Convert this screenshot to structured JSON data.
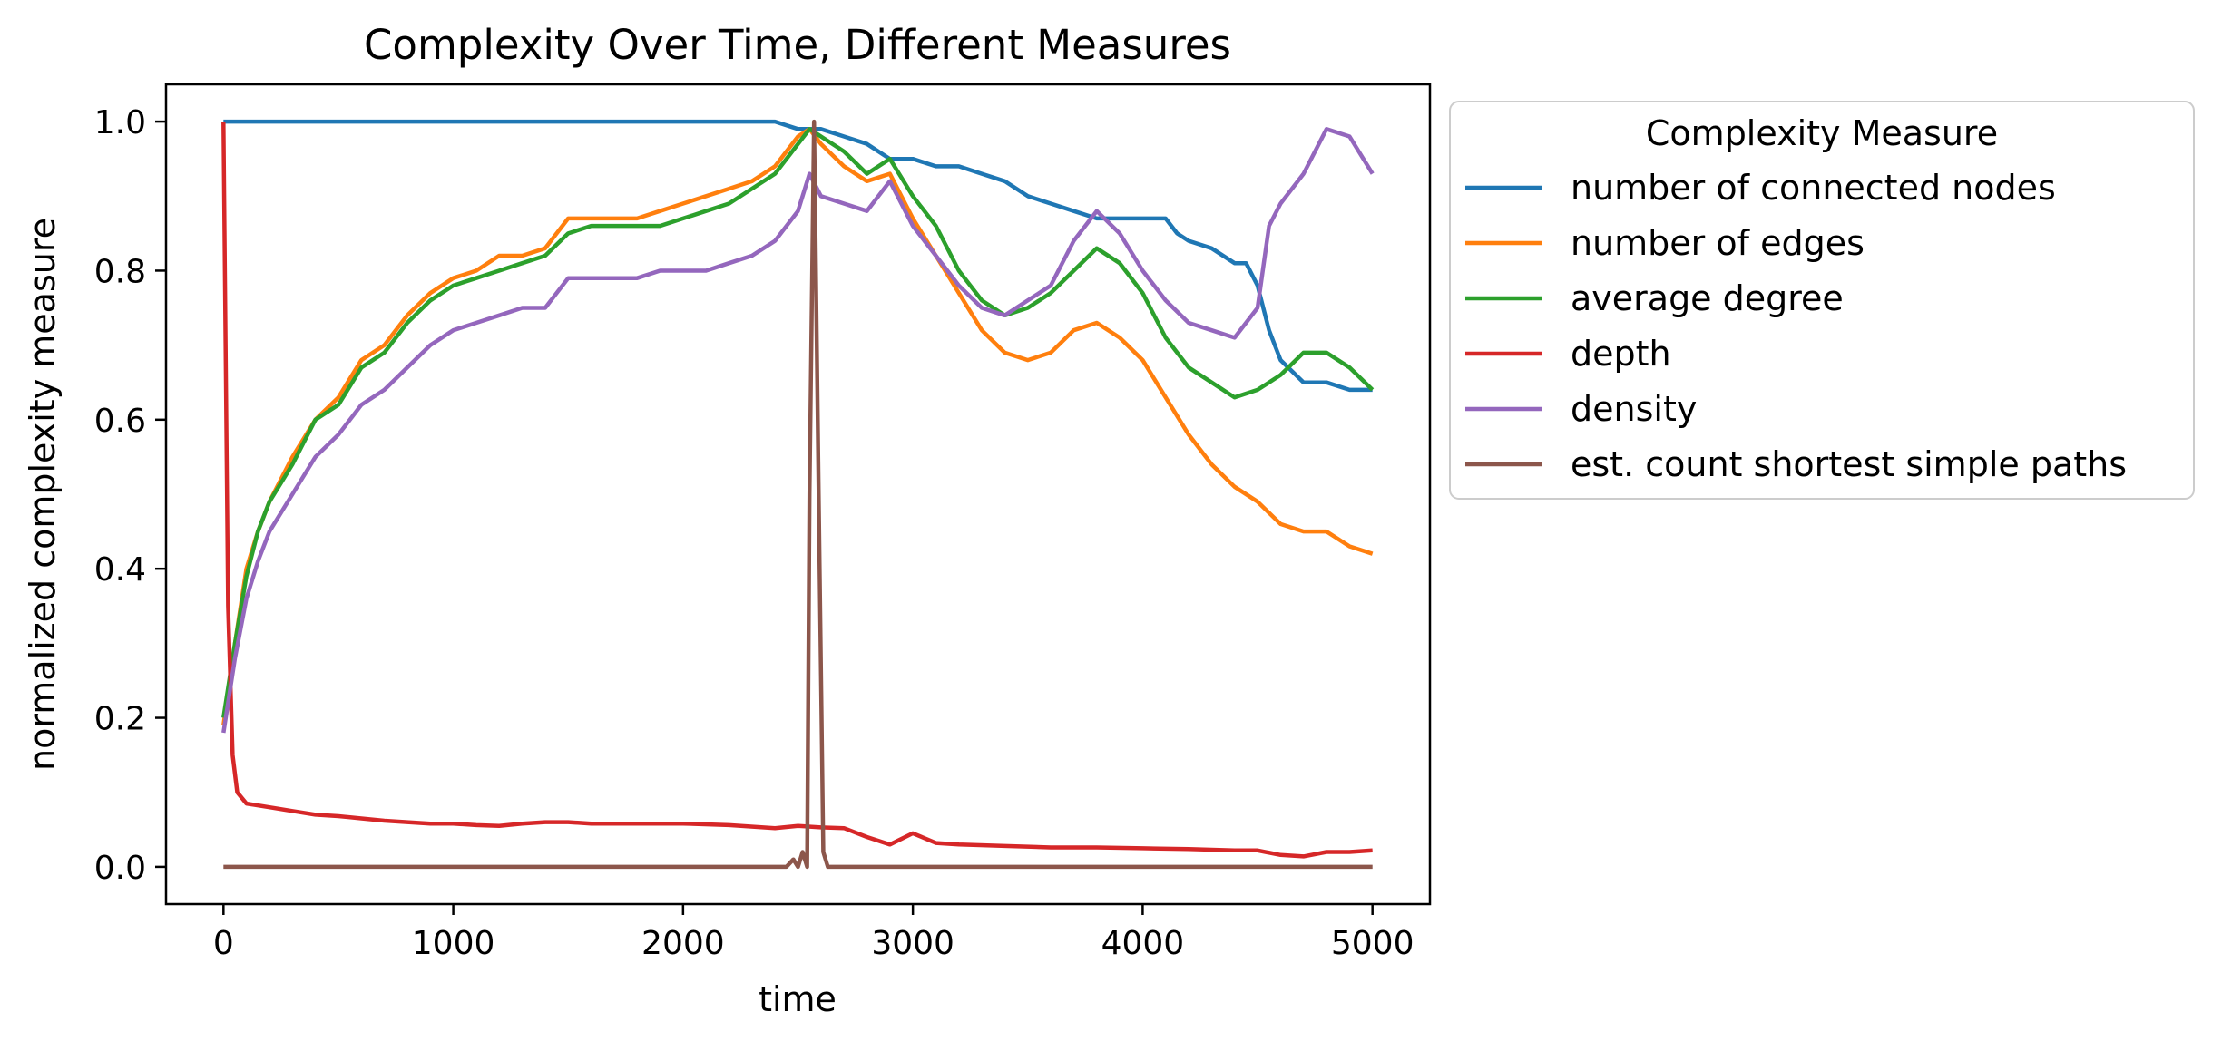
{
  "chart_data": {
    "type": "line",
    "title": "Complexity Over Time, Different Measures",
    "xlabel": "time",
    "ylabel": "normalized complexity measure",
    "xlim": [
      -250,
      5250
    ],
    "ylim": [
      -0.05,
      1.05
    ],
    "x_ticks": [
      0,
      1000,
      2000,
      3000,
      4000,
      5000
    ],
    "x_tick_labels": [
      "0",
      "1000",
      "2000",
      "3000",
      "4000",
      "5000"
    ],
    "y_ticks": [
      0.0,
      0.2,
      0.4,
      0.6,
      0.8,
      1.0
    ],
    "y_tick_labels": [
      "0.0",
      "0.2",
      "0.4",
      "0.6",
      "0.8",
      "1.0"
    ],
    "grid": false,
    "legend": {
      "title": "Complexity Measure",
      "placement": "outside-right-top"
    },
    "series": [
      {
        "name": "number of connected nodes",
        "color": "#1f77b4",
        "points": [
          [
            0,
            1.0
          ],
          [
            2200,
            1.0
          ],
          [
            2400,
            1.0
          ],
          [
            2500,
            0.99
          ],
          [
            2600,
            0.99
          ],
          [
            2700,
            0.98
          ],
          [
            2800,
            0.97
          ],
          [
            2900,
            0.95
          ],
          [
            3000,
            0.95
          ],
          [
            3100,
            0.94
          ],
          [
            3200,
            0.94
          ],
          [
            3300,
            0.93
          ],
          [
            3400,
            0.92
          ],
          [
            3500,
            0.9
          ],
          [
            3600,
            0.89
          ],
          [
            3700,
            0.88
          ],
          [
            3800,
            0.87
          ],
          [
            3900,
            0.87
          ],
          [
            4000,
            0.87
          ],
          [
            4100,
            0.87
          ],
          [
            4150,
            0.85
          ],
          [
            4200,
            0.84
          ],
          [
            4300,
            0.83
          ],
          [
            4400,
            0.81
          ],
          [
            4450,
            0.81
          ],
          [
            4500,
            0.78
          ],
          [
            4550,
            0.72
          ],
          [
            4600,
            0.68
          ],
          [
            4700,
            0.65
          ],
          [
            4800,
            0.65
          ],
          [
            4900,
            0.64
          ],
          [
            5000,
            0.64
          ]
        ]
      },
      {
        "name": "number of edges",
        "color": "#ff7f0e",
        "points": [
          [
            0,
            0.19
          ],
          [
            50,
            0.3
          ],
          [
            100,
            0.4
          ],
          [
            150,
            0.45
          ],
          [
            200,
            0.49
          ],
          [
            300,
            0.55
          ],
          [
            400,
            0.6
          ],
          [
            500,
            0.63
          ],
          [
            600,
            0.68
          ],
          [
            700,
            0.7
          ],
          [
            800,
            0.74
          ],
          [
            900,
            0.77
          ],
          [
            1000,
            0.79
          ],
          [
            1100,
            0.8
          ],
          [
            1200,
            0.82
          ],
          [
            1300,
            0.82
          ],
          [
            1400,
            0.83
          ],
          [
            1500,
            0.87
          ],
          [
            1600,
            0.87
          ],
          [
            1700,
            0.87
          ],
          [
            1800,
            0.87
          ],
          [
            1900,
            0.88
          ],
          [
            2000,
            0.89
          ],
          [
            2100,
            0.9
          ],
          [
            2200,
            0.91
          ],
          [
            2300,
            0.92
          ],
          [
            2400,
            0.94
          ],
          [
            2500,
            0.98
          ],
          [
            2550,
            0.99
          ],
          [
            2600,
            0.97
          ],
          [
            2700,
            0.94
          ],
          [
            2800,
            0.92
          ],
          [
            2900,
            0.93
          ],
          [
            3000,
            0.87
          ],
          [
            3100,
            0.82
          ],
          [
            3200,
            0.77
          ],
          [
            3300,
            0.72
          ],
          [
            3400,
            0.69
          ],
          [
            3500,
            0.68
          ],
          [
            3600,
            0.69
          ],
          [
            3700,
            0.72
          ],
          [
            3800,
            0.73
          ],
          [
            3900,
            0.71
          ],
          [
            4000,
            0.68
          ],
          [
            4100,
            0.63
          ],
          [
            4200,
            0.58
          ],
          [
            4300,
            0.54
          ],
          [
            4400,
            0.51
          ],
          [
            4500,
            0.49
          ],
          [
            4600,
            0.46
          ],
          [
            4700,
            0.45
          ],
          [
            4800,
            0.45
          ],
          [
            4900,
            0.43
          ],
          [
            5000,
            0.42
          ]
        ]
      },
      {
        "name": "average degree",
        "color": "#2ca02c",
        "points": [
          [
            0,
            0.2
          ],
          [
            50,
            0.3
          ],
          [
            100,
            0.39
          ],
          [
            150,
            0.45
          ],
          [
            200,
            0.49
          ],
          [
            300,
            0.54
          ],
          [
            400,
            0.6
          ],
          [
            500,
            0.62
          ],
          [
            600,
            0.67
          ],
          [
            700,
            0.69
          ],
          [
            800,
            0.73
          ],
          [
            900,
            0.76
          ],
          [
            1000,
            0.78
          ],
          [
            1100,
            0.79
          ],
          [
            1200,
            0.8
          ],
          [
            1300,
            0.81
          ],
          [
            1400,
            0.82
          ],
          [
            1500,
            0.85
          ],
          [
            1600,
            0.86
          ],
          [
            1700,
            0.86
          ],
          [
            1800,
            0.86
          ],
          [
            1900,
            0.86
          ],
          [
            2000,
            0.87
          ],
          [
            2100,
            0.88
          ],
          [
            2200,
            0.89
          ],
          [
            2300,
            0.91
          ],
          [
            2400,
            0.93
          ],
          [
            2500,
            0.97
          ],
          [
            2550,
            0.99
          ],
          [
            2600,
            0.98
          ],
          [
            2700,
            0.96
          ],
          [
            2800,
            0.93
          ],
          [
            2900,
            0.95
          ],
          [
            3000,
            0.9
          ],
          [
            3100,
            0.86
          ],
          [
            3200,
            0.8
          ],
          [
            3300,
            0.76
          ],
          [
            3400,
            0.74
          ],
          [
            3500,
            0.75
          ],
          [
            3600,
            0.77
          ],
          [
            3700,
            0.8
          ],
          [
            3800,
            0.83
          ],
          [
            3900,
            0.81
          ],
          [
            4000,
            0.77
          ],
          [
            4100,
            0.71
          ],
          [
            4200,
            0.67
          ],
          [
            4300,
            0.65
          ],
          [
            4400,
            0.63
          ],
          [
            4500,
            0.64
          ],
          [
            4600,
            0.66
          ],
          [
            4700,
            0.69
          ],
          [
            4800,
            0.69
          ],
          [
            4900,
            0.67
          ],
          [
            5000,
            0.64
          ]
        ]
      },
      {
        "name": "depth",
        "color": "#d62728",
        "points": [
          [
            0,
            1.0
          ],
          [
            20,
            0.35
          ],
          [
            40,
            0.15
          ],
          [
            60,
            0.1
          ],
          [
            100,
            0.085
          ],
          [
            200,
            0.08
          ],
          [
            300,
            0.075
          ],
          [
            400,
            0.07
          ],
          [
            500,
            0.068
          ],
          [
            600,
            0.065
          ],
          [
            700,
            0.062
          ],
          [
            800,
            0.06
          ],
          [
            900,
            0.058
          ],
          [
            1000,
            0.058
          ],
          [
            1100,
            0.056
          ],
          [
            1200,
            0.055
          ],
          [
            1300,
            0.058
          ],
          [
            1400,
            0.06
          ],
          [
            1500,
            0.06
          ],
          [
            1600,
            0.058
          ],
          [
            1700,
            0.058
          ],
          [
            1800,
            0.058
          ],
          [
            1900,
            0.058
          ],
          [
            2000,
            0.058
          ],
          [
            2200,
            0.056
          ],
          [
            2400,
            0.052
          ],
          [
            2500,
            0.055
          ],
          [
            2600,
            0.053
          ],
          [
            2700,
            0.052
          ],
          [
            2800,
            0.04
          ],
          [
            2900,
            0.03
          ],
          [
            3000,
            0.045
          ],
          [
            3100,
            0.032
          ],
          [
            3200,
            0.03
          ],
          [
            3400,
            0.028
          ],
          [
            3600,
            0.026
          ],
          [
            3800,
            0.026
          ],
          [
            4000,
            0.025
          ],
          [
            4200,
            0.024
          ],
          [
            4400,
            0.022
          ],
          [
            4500,
            0.022
          ],
          [
            4600,
            0.016
          ],
          [
            4700,
            0.014
          ],
          [
            4800,
            0.02
          ],
          [
            4900,
            0.02
          ],
          [
            5000,
            0.022
          ]
        ]
      },
      {
        "name": "density",
        "color": "#9467bd",
        "points": [
          [
            0,
            0.18
          ],
          [
            50,
            0.28
          ],
          [
            100,
            0.36
          ],
          [
            150,
            0.41
          ],
          [
            200,
            0.45
          ],
          [
            300,
            0.5
          ],
          [
            400,
            0.55
          ],
          [
            500,
            0.58
          ],
          [
            600,
            0.62
          ],
          [
            700,
            0.64
          ],
          [
            800,
            0.67
          ],
          [
            900,
            0.7
          ],
          [
            1000,
            0.72
          ],
          [
            1100,
            0.73
          ],
          [
            1200,
            0.74
          ],
          [
            1300,
            0.75
          ],
          [
            1400,
            0.75
          ],
          [
            1500,
            0.79
          ],
          [
            1600,
            0.79
          ],
          [
            1700,
            0.79
          ],
          [
            1800,
            0.79
          ],
          [
            1900,
            0.8
          ],
          [
            2000,
            0.8
          ],
          [
            2100,
            0.8
          ],
          [
            2200,
            0.81
          ],
          [
            2300,
            0.82
          ],
          [
            2400,
            0.84
          ],
          [
            2500,
            0.88
          ],
          [
            2550,
            0.93
          ],
          [
            2600,
            0.9
          ],
          [
            2700,
            0.89
          ],
          [
            2800,
            0.88
          ],
          [
            2900,
            0.92
          ],
          [
            3000,
            0.86
          ],
          [
            3100,
            0.82
          ],
          [
            3200,
            0.78
          ],
          [
            3300,
            0.75
          ],
          [
            3400,
            0.74
          ],
          [
            3500,
            0.76
          ],
          [
            3600,
            0.78
          ],
          [
            3700,
            0.84
          ],
          [
            3800,
            0.88
          ],
          [
            3900,
            0.85
          ],
          [
            4000,
            0.8
          ],
          [
            4100,
            0.76
          ],
          [
            4200,
            0.73
          ],
          [
            4300,
            0.72
          ],
          [
            4400,
            0.71
          ],
          [
            4500,
            0.75
          ],
          [
            4550,
            0.86
          ],
          [
            4600,
            0.89
          ],
          [
            4700,
            0.93
          ],
          [
            4800,
            0.99
          ],
          [
            4900,
            0.98
          ],
          [
            5000,
            0.93
          ]
        ]
      },
      {
        "name": "est. count shortest simple paths",
        "color": "#8c564b",
        "points": [
          [
            0,
            0.0
          ],
          [
            2450,
            0.0
          ],
          [
            2480,
            0.01
          ],
          [
            2500,
            0.0
          ],
          [
            2520,
            0.02
          ],
          [
            2540,
            0.0
          ],
          [
            2550,
            0.5
          ],
          [
            2570,
            1.0
          ],
          [
            2590,
            0.5
          ],
          [
            2610,
            0.02
          ],
          [
            2630,
            0.0
          ],
          [
            5000,
            0.0
          ]
        ]
      }
    ]
  }
}
